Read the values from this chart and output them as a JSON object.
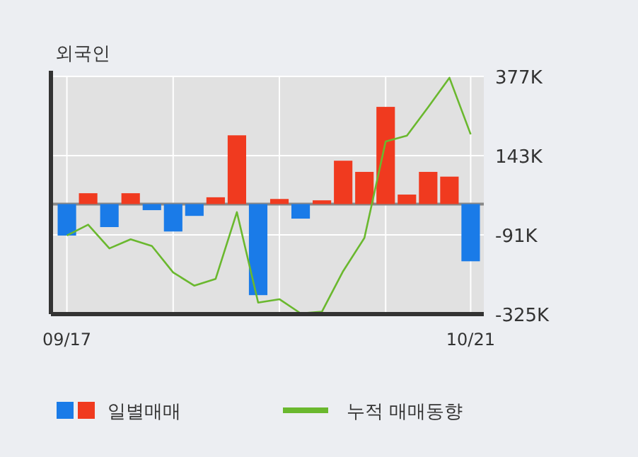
{
  "chart_data": {
    "type": "bar",
    "title": "외국인",
    "categories": [
      "09/17",
      null,
      null,
      null,
      null,
      null,
      null,
      null,
      null,
      null,
      null,
      null,
      null,
      null,
      null,
      null,
      null,
      null,
      null,
      "10/21"
    ],
    "series": [
      {
        "name": "일별매매",
        "colors": [
          "#1a7be8",
          "#f03a1f",
          "#1a7be8",
          "#f03a1f",
          "#1a7be8",
          "#1a7be8",
          "#1a7be8",
          "#f03a1f",
          "#f03a1f",
          "#1a7be8",
          "#f03a1f",
          "#1a7be8",
          "#f03a1f",
          "#f03a1f",
          "#f03a1f",
          "#f03a1f",
          "#f03a1f",
          "#f03a1f",
          "#f03a1f",
          "#1a7be8"
        ],
        "values": [
          -93,
          32,
          -68,
          32,
          -18,
          -81,
          -35,
          20,
          203,
          -269,
          15,
          -43,
          11,
          128,
          95,
          287,
          28,
          95,
          81,
          -169
        ]
      },
      {
        "name": "누적 매매동향",
        "type": "line",
        "color": "#6ab82e",
        "values": [
          -93,
          -61,
          -131,
          -104,
          -124,
          -202,
          -241,
          -221,
          -24,
          -291,
          -281,
          -323,
          -318,
          -198,
          -100,
          185,
          202,
          286,
          373,
          206
        ]
      }
    ],
    "ylim": [
      -325,
      377
    ],
    "yticks": [
      {
        "value": 377,
        "label": "377K"
      },
      {
        "value": 143,
        "label": "143K"
      },
      {
        "value": -91,
        "label": "-91K"
      },
      {
        "value": -325,
        "label": "-325K"
      }
    ],
    "grid": true,
    "legend": "bottom"
  }
}
